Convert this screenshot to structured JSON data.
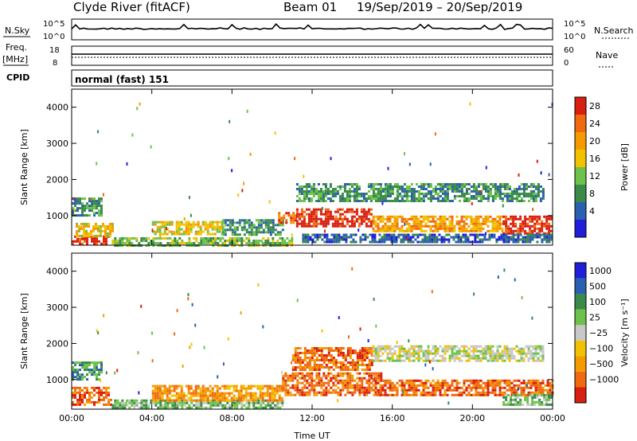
{
  "header": {
    "site": "Clyde River (fitACF)",
    "beam": "Beam 01",
    "date_range": "19/Sep/2019 – 20/Sep/2019"
  },
  "strip_labels": {
    "nsky": "N.Sky",
    "nsky_top": "10^5",
    "nsky_bottom": "10^0",
    "nsearch": "N.Search",
    "nsearch_top": "10^5",
    "nsearch_bottom": "10^0",
    "freq_title_1": "Freq.",
    "freq_title_2": "[MHz]",
    "freq_top": "18",
    "freq_bottom": "8",
    "nave": "Nave",
    "nave_top": "60",
    "nave_bottom": "0",
    "cpid": "CPID",
    "cpid_text": "normal (fast) 151"
  },
  "colors": {
    "power": [
      "#1f1fd9",
      "#2b5fb0",
      "#3a8a4a",
      "#6cc24a",
      "#f2c200",
      "#f59b00",
      "#f06a10",
      "#d81f10"
    ],
    "velocity": [
      "#d81f10",
      "#f06a10",
      "#f59b00",
      "#f2c200",
      "#c8c8c8",
      "#6cc24a",
      "#3a8a4a",
      "#2b5fb0",
      "#1f1fd9"
    ]
  },
  "chart_data": [
    {
      "type": "heatmap",
      "name": "power",
      "xlabel": "",
      "ylabel": "Slant Range [km]",
      "x_ticks": [
        "00:00",
        "04:00",
        "08:00",
        "12:00",
        "16:00",
        "20:00",
        "00:00"
      ],
      "y_ticks": [
        "1000",
        "2000",
        "3000",
        "4000"
      ],
      "xlim": [
        0,
        24
      ],
      "ylim": [
        180,
        4500
      ],
      "colorbar_label": "Power [dB]",
      "colorbar_ticks": [
        "4",
        "8",
        "12",
        "16",
        "20",
        "24",
        "28"
      ],
      "clim": [
        0,
        32
      ],
      "bands": [
        {
          "t0": 0.0,
          "t1": 1.8,
          "r0": 200,
          "r1": 450,
          "level": 7
        },
        {
          "t0": 0.0,
          "t1": 1.5,
          "r0": 1000,
          "r1": 1500,
          "level": 2
        },
        {
          "t0": 0.2,
          "t1": 2.0,
          "r0": 450,
          "r1": 800,
          "level": 4
        },
        {
          "t0": 2.0,
          "t1": 11.0,
          "r0": 200,
          "r1": 400,
          "level": 3
        },
        {
          "t0": 4.0,
          "t1": 7.5,
          "r0": 500,
          "r1": 850,
          "level": 4
        },
        {
          "t0": 7.5,
          "t1": 10.5,
          "r0": 450,
          "r1": 900,
          "level": 2
        },
        {
          "t0": 10.3,
          "t1": 11.2,
          "r0": 800,
          "r1": 1100,
          "level": 6
        },
        {
          "t0": 11.2,
          "t1": 15.0,
          "r0": 700,
          "r1": 1200,
          "level": 7
        },
        {
          "t0": 11.2,
          "t1": 23.5,
          "r0": 1400,
          "r1": 1900,
          "level": 2
        },
        {
          "t0": 15.0,
          "t1": 21.5,
          "r0": 600,
          "r1": 1000,
          "level": 5
        },
        {
          "t0": 21.5,
          "t1": 24.0,
          "r0": 500,
          "r1": 1000,
          "level": 7
        },
        {
          "t0": 11.5,
          "t1": 24.0,
          "r0": 250,
          "r1": 500,
          "level": 1
        }
      ]
    },
    {
      "type": "heatmap",
      "name": "velocity",
      "xlabel": "Time UT",
      "ylabel": "Slant Range [km]",
      "x_ticks": [
        "00:00",
        "04:00",
        "08:00",
        "12:00",
        "16:00",
        "20:00",
        "00:00"
      ],
      "y_ticks": [
        "1000",
        "2000",
        "3000",
        "4000"
      ],
      "xlim": [
        0,
        24
      ],
      "ylim": [
        180,
        4500
      ],
      "colorbar_label": "Velocity [m s⁻¹]",
      "colorbar_ticks": [
        "1000",
        "500",
        "100",
        "25",
        "−25",
        "−100",
        "−500",
        "−1000"
      ],
      "bands": [
        {
          "t0": 0.0,
          "t1": 2.0,
          "r0": 300,
          "r1": 800,
          "level": 1
        },
        {
          "t0": 0.0,
          "t1": 1.5,
          "r0": 1000,
          "r1": 1500,
          "level": 6
        },
        {
          "t0": 2.0,
          "t1": 10.5,
          "r0": 200,
          "r1": 450,
          "level": 5
        },
        {
          "t0": 4.0,
          "t1": 10.5,
          "r0": 450,
          "r1": 850,
          "level": 2
        },
        {
          "t0": 10.5,
          "t1": 15.5,
          "r0": 600,
          "r1": 1200,
          "level": 1
        },
        {
          "t0": 11.0,
          "t1": 15.0,
          "r0": 1300,
          "r1": 1900,
          "level": 1
        },
        {
          "t0": 15.0,
          "t1": 23.5,
          "r0": 1500,
          "r1": 1950,
          "level": 4
        },
        {
          "t0": 15.0,
          "t1": 24.0,
          "r0": 600,
          "r1": 1000,
          "level": 1
        },
        {
          "t0": 21.5,
          "t1": 24.0,
          "r0": 300,
          "r1": 600,
          "level": 5
        }
      ]
    }
  ]
}
